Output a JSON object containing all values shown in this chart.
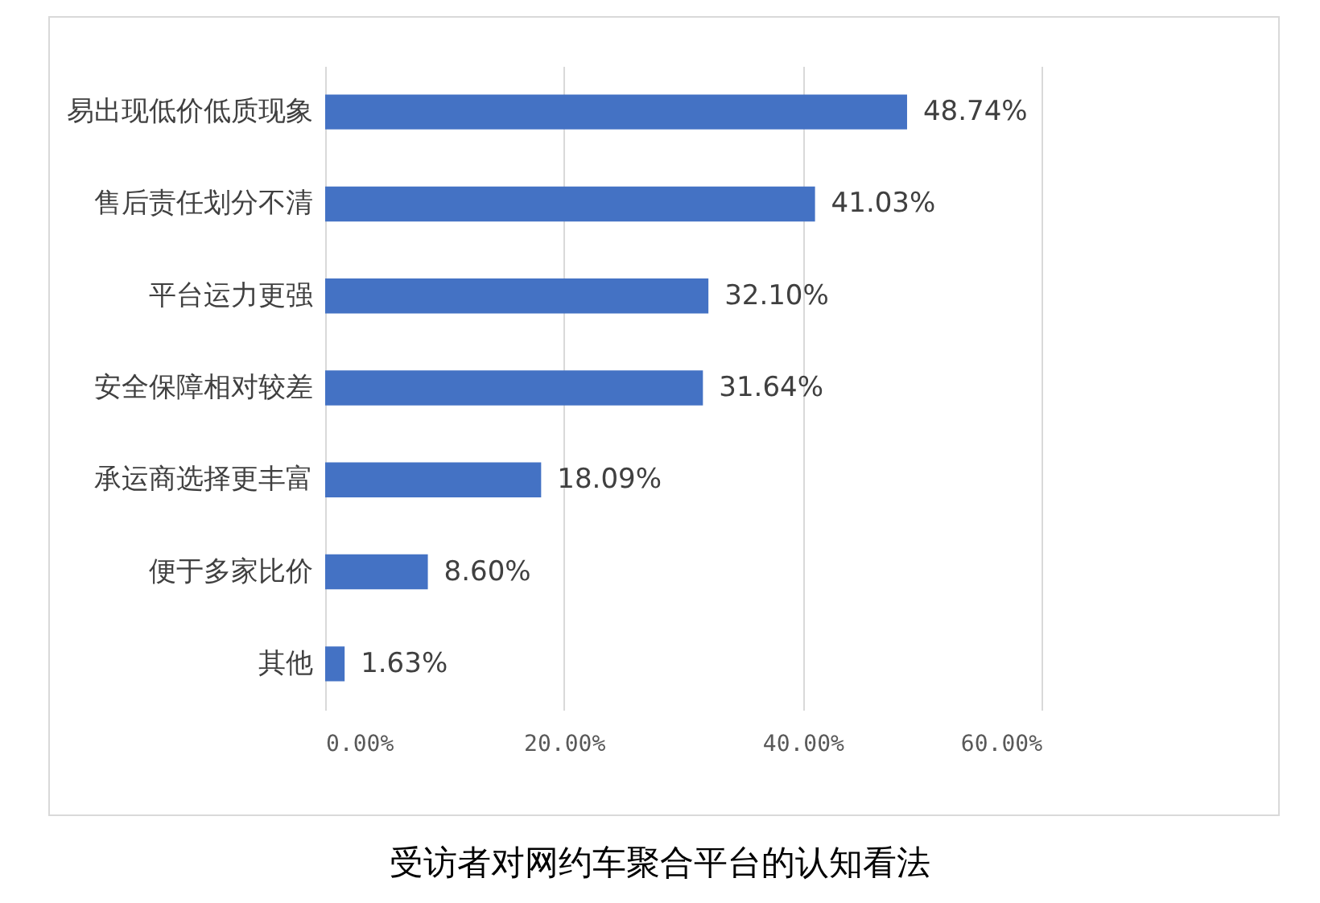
{
  "chart_data": {
    "type": "bar",
    "orientation": "horizontal",
    "title": "受访者对网约车聚合平台的认知看法",
    "categories": [
      "易出现低价低质现象",
      "售后责任划分不清",
      "平台运力更强",
      "安全保障相对较差",
      "承运商选择更丰富",
      "便于多家比价",
      "其他"
    ],
    "values": [
      48.74,
      41.03,
      32.1,
      31.64,
      18.09,
      8.6,
      1.63
    ],
    "value_labels": [
      "48.74%",
      "41.03%",
      "32.10%",
      "31.64%",
      "18.09%",
      "8.60%",
      "1.63%"
    ],
    "color": "#4472c4",
    "xlim": [
      0,
      60
    ],
    "xticks": [
      {
        "value": 0,
        "label": "0.00%"
      },
      {
        "value": 20,
        "label": "20.00%"
      },
      {
        "value": 40,
        "label": "40.00%"
      },
      {
        "value": 60,
        "label": "60.00%"
      }
    ],
    "grid": true
  }
}
